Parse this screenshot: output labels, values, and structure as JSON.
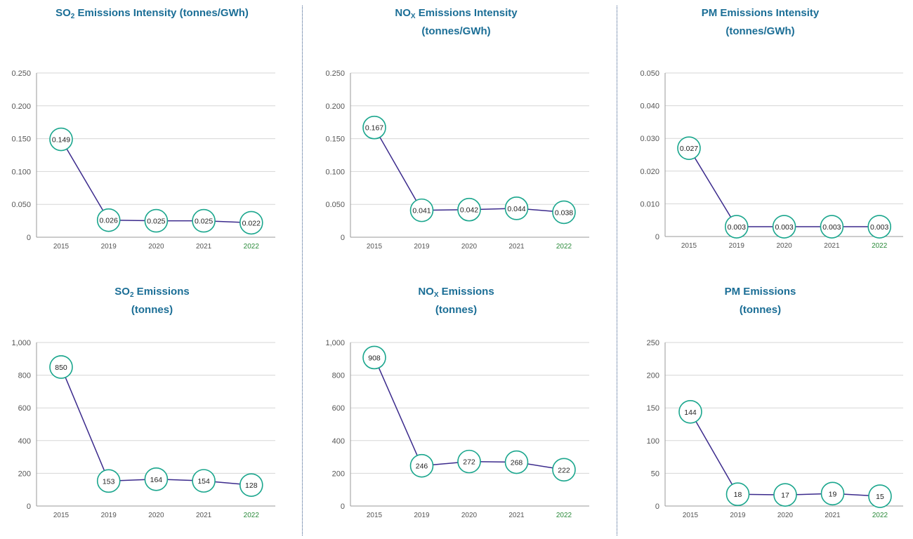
{
  "charts": [
    {
      "title_main": "SO",
      "title_sub": "2",
      "title_rest": " Emissions Intensity (tonnes/GWh)",
      "title_line2": "",
      "chart_data": {
        "type": "line",
        "categories": [
          "2015",
          "2019",
          "2020",
          "2021",
          "2022"
        ],
        "values": [
          0.149,
          0.026,
          0.025,
          0.025,
          0.022
        ],
        "labels": [
          "0.149",
          "0.026",
          "0.025",
          "0.025",
          "0.022"
        ],
        "ylim": [
          0,
          0.25
        ],
        "yticks": [
          "0",
          "0.050",
          "0.100",
          "0.150",
          "0.200",
          "0.250"
        ],
        "ytick_values": [
          0,
          0.05,
          0.1,
          0.15,
          0.2,
          0.25
        ]
      }
    },
    {
      "title_main": "NO",
      "title_sub": "X",
      "title_rest": " Emissions Intensity",
      "title_line2": "(tonnes/GWh)",
      "chart_data": {
        "type": "line",
        "categories": [
          "2015",
          "2019",
          "2020",
          "2021",
          "2022"
        ],
        "values": [
          0.167,
          0.041,
          0.042,
          0.044,
          0.038
        ],
        "labels": [
          "0.167",
          "0.041",
          "0.042",
          "0.044",
          "0.038"
        ],
        "ylim": [
          0,
          0.25
        ],
        "yticks": [
          "0",
          "0.050",
          "0.100",
          "0.150",
          "0.200",
          "0.250"
        ],
        "ytick_values": [
          0,
          0.05,
          0.1,
          0.15,
          0.2,
          0.25
        ]
      }
    },
    {
      "title_main": "PM Emissions Intensity",
      "title_sub": "",
      "title_rest": "",
      "title_line2": "(tonnes/GWh)",
      "chart_data": {
        "type": "line",
        "categories": [
          "2015",
          "2019",
          "2020",
          "2021",
          "2022"
        ],
        "values": [
          0.027,
          0.003,
          0.003,
          0.003,
          0.003
        ],
        "labels": [
          "0.027",
          "0.003",
          "0.003",
          "0.003",
          "0.003"
        ],
        "ylim": [
          0,
          0.05
        ],
        "yticks": [
          "0",
          "0.010",
          "0.020",
          "0.030",
          "0.040",
          "0.050"
        ],
        "ytick_values": [
          0,
          0.01,
          0.02,
          0.03,
          0.04,
          0.05
        ]
      }
    },
    {
      "title_main": "SO",
      "title_sub": "2",
      "title_rest": " Emissions",
      "title_line2": "(tonnes)",
      "chart_data": {
        "type": "line",
        "categories": [
          "2015",
          "2019",
          "2020",
          "2021",
          "2022"
        ],
        "values": [
          850,
          153,
          164,
          154,
          128
        ],
        "labels": [
          "850",
          "153",
          "164",
          "154",
          "128"
        ],
        "ylim": [
          0,
          1000
        ],
        "yticks": [
          "0",
          "200",
          "400",
          "600",
          "800",
          "1,000"
        ],
        "ytick_values": [
          0,
          200,
          400,
          600,
          800,
          1000
        ]
      }
    },
    {
      "title_main": "NO",
      "title_sub": "X",
      "title_rest": " Emissions",
      "title_line2": "(tonnes)",
      "chart_data": {
        "type": "line",
        "categories": [
          "2015",
          "2019",
          "2020",
          "2021",
          "2022"
        ],
        "values": [
          908,
          246,
          272,
          268,
          222
        ],
        "labels": [
          "908",
          "246",
          "272",
          "268",
          "222"
        ],
        "ylim": [
          0,
          1000
        ],
        "yticks": [
          "0",
          "200",
          "400",
          "600",
          "800",
          "1,000"
        ],
        "ytick_values": [
          0,
          200,
          400,
          600,
          800,
          1000
        ]
      }
    },
    {
      "title_main": "PM Emissions",
      "title_sub": "",
      "title_rest": "",
      "title_line2": "(tonnes)",
      "chart_data": {
        "type": "line",
        "categories": [
          "2015",
          "2019",
          "2020",
          "2021",
          "2022"
        ],
        "values": [
          144,
          18,
          17,
          19,
          15
        ],
        "labels": [
          "144",
          "18",
          "17",
          "19",
          "15"
        ],
        "ylim": [
          0,
          250
        ],
        "yticks": [
          "0",
          "50",
          "100",
          "150",
          "200",
          "250"
        ],
        "ytick_values": [
          0,
          50,
          100,
          150,
          200,
          250
        ]
      }
    }
  ],
  "colors": {
    "line": "#3b2a8c",
    "marker": "#1aa68d",
    "title": "#1b6e96",
    "grid": "#d6d6d6",
    "axis": "#9a9a9a",
    "tick": "#555555",
    "highlight_year": "#2a8a3a"
  },
  "highlight_category": "2022"
}
